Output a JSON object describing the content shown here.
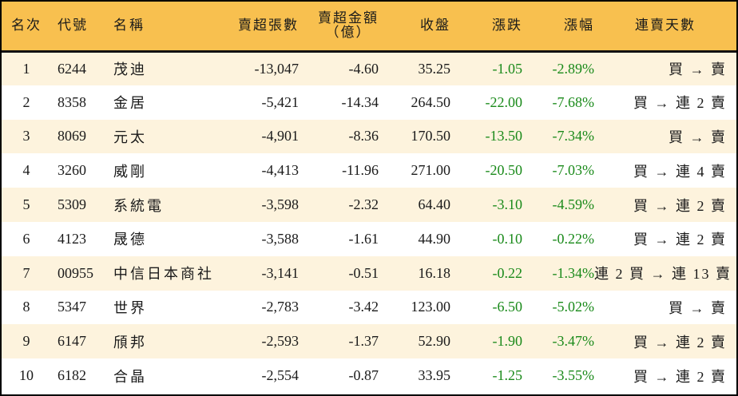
{
  "table": {
    "headers": {
      "rank": "名次",
      "code": "代號",
      "name": "名稱",
      "net_sell_lots": "賣超張數",
      "net_sell_amount_line1": "賣超金額",
      "net_sell_amount_line2": "（億）",
      "close": "收盤",
      "change": "漲跌",
      "change_pct": "漲幅",
      "streak": "連賣天數"
    },
    "rows": [
      {
        "rank": "1",
        "code": "6244",
        "name": "茂迪",
        "net_sell_lots": "-13,047",
        "net_sell_amount": "-4.60",
        "close": "35.25",
        "change": "-1.05",
        "change_pct": "-2.89%",
        "streak": "買 → 賣"
      },
      {
        "rank": "2",
        "code": "8358",
        "name": "金居",
        "net_sell_lots": "-5,421",
        "net_sell_amount": "-14.34",
        "close": "264.50",
        "change": "-22.00",
        "change_pct": "-7.68%",
        "streak": "買 → 連 2 賣"
      },
      {
        "rank": "3",
        "code": "8069",
        "name": "元太",
        "net_sell_lots": "-4,901",
        "net_sell_amount": "-8.36",
        "close": "170.50",
        "change": "-13.50",
        "change_pct": "-7.34%",
        "streak": "買 → 賣"
      },
      {
        "rank": "4",
        "code": "3260",
        "name": "威剛",
        "net_sell_lots": "-4,413",
        "net_sell_amount": "-11.96",
        "close": "271.00",
        "change": "-20.50",
        "change_pct": "-7.03%",
        "streak": "買 → 連 4 賣"
      },
      {
        "rank": "5",
        "code": "5309",
        "name": "系統電",
        "net_sell_lots": "-3,598",
        "net_sell_amount": "-2.32",
        "close": "64.40",
        "change": "-3.10",
        "change_pct": "-4.59%",
        "streak": "買 → 連 2 賣"
      },
      {
        "rank": "6",
        "code": "4123",
        "name": "晟德",
        "net_sell_lots": "-3,588",
        "net_sell_amount": "-1.61",
        "close": "44.90",
        "change": "-0.10",
        "change_pct": "-0.22%",
        "streak": "買 → 連 2 賣"
      },
      {
        "rank": "7",
        "code": "00955",
        "name": "中信日本商社",
        "net_sell_lots": "-3,141",
        "net_sell_amount": "-0.51",
        "close": "16.18",
        "change": "-0.22",
        "change_pct": "-1.34%",
        "streak": "連 2 買 → 連 13 賣"
      },
      {
        "rank": "8",
        "code": "5347",
        "name": "世界",
        "net_sell_lots": "-2,783",
        "net_sell_amount": "-3.42",
        "close": "123.00",
        "change": "-6.50",
        "change_pct": "-5.02%",
        "streak": "買 → 賣"
      },
      {
        "rank": "9",
        "code": "6147",
        "name": "頎邦",
        "net_sell_lots": "-2,593",
        "net_sell_amount": "-1.37",
        "close": "52.90",
        "change": "-1.90",
        "change_pct": "-3.47%",
        "streak": "買 → 連 2 賣"
      },
      {
        "rank": "10",
        "code": "6182",
        "name": "合晶",
        "net_sell_lots": "-2,554",
        "net_sell_amount": "-0.87",
        "close": "33.95",
        "change": "-1.25",
        "change_pct": "-3.55%",
        "streak": "買 → 連 2 賣"
      }
    ]
  },
  "colors": {
    "header_bg": "#f8c04f",
    "row_odd_bg": "#fdf3dd",
    "row_even_bg": "#ffffff",
    "down_green": "#1a8a1a",
    "border": "#000000"
  }
}
